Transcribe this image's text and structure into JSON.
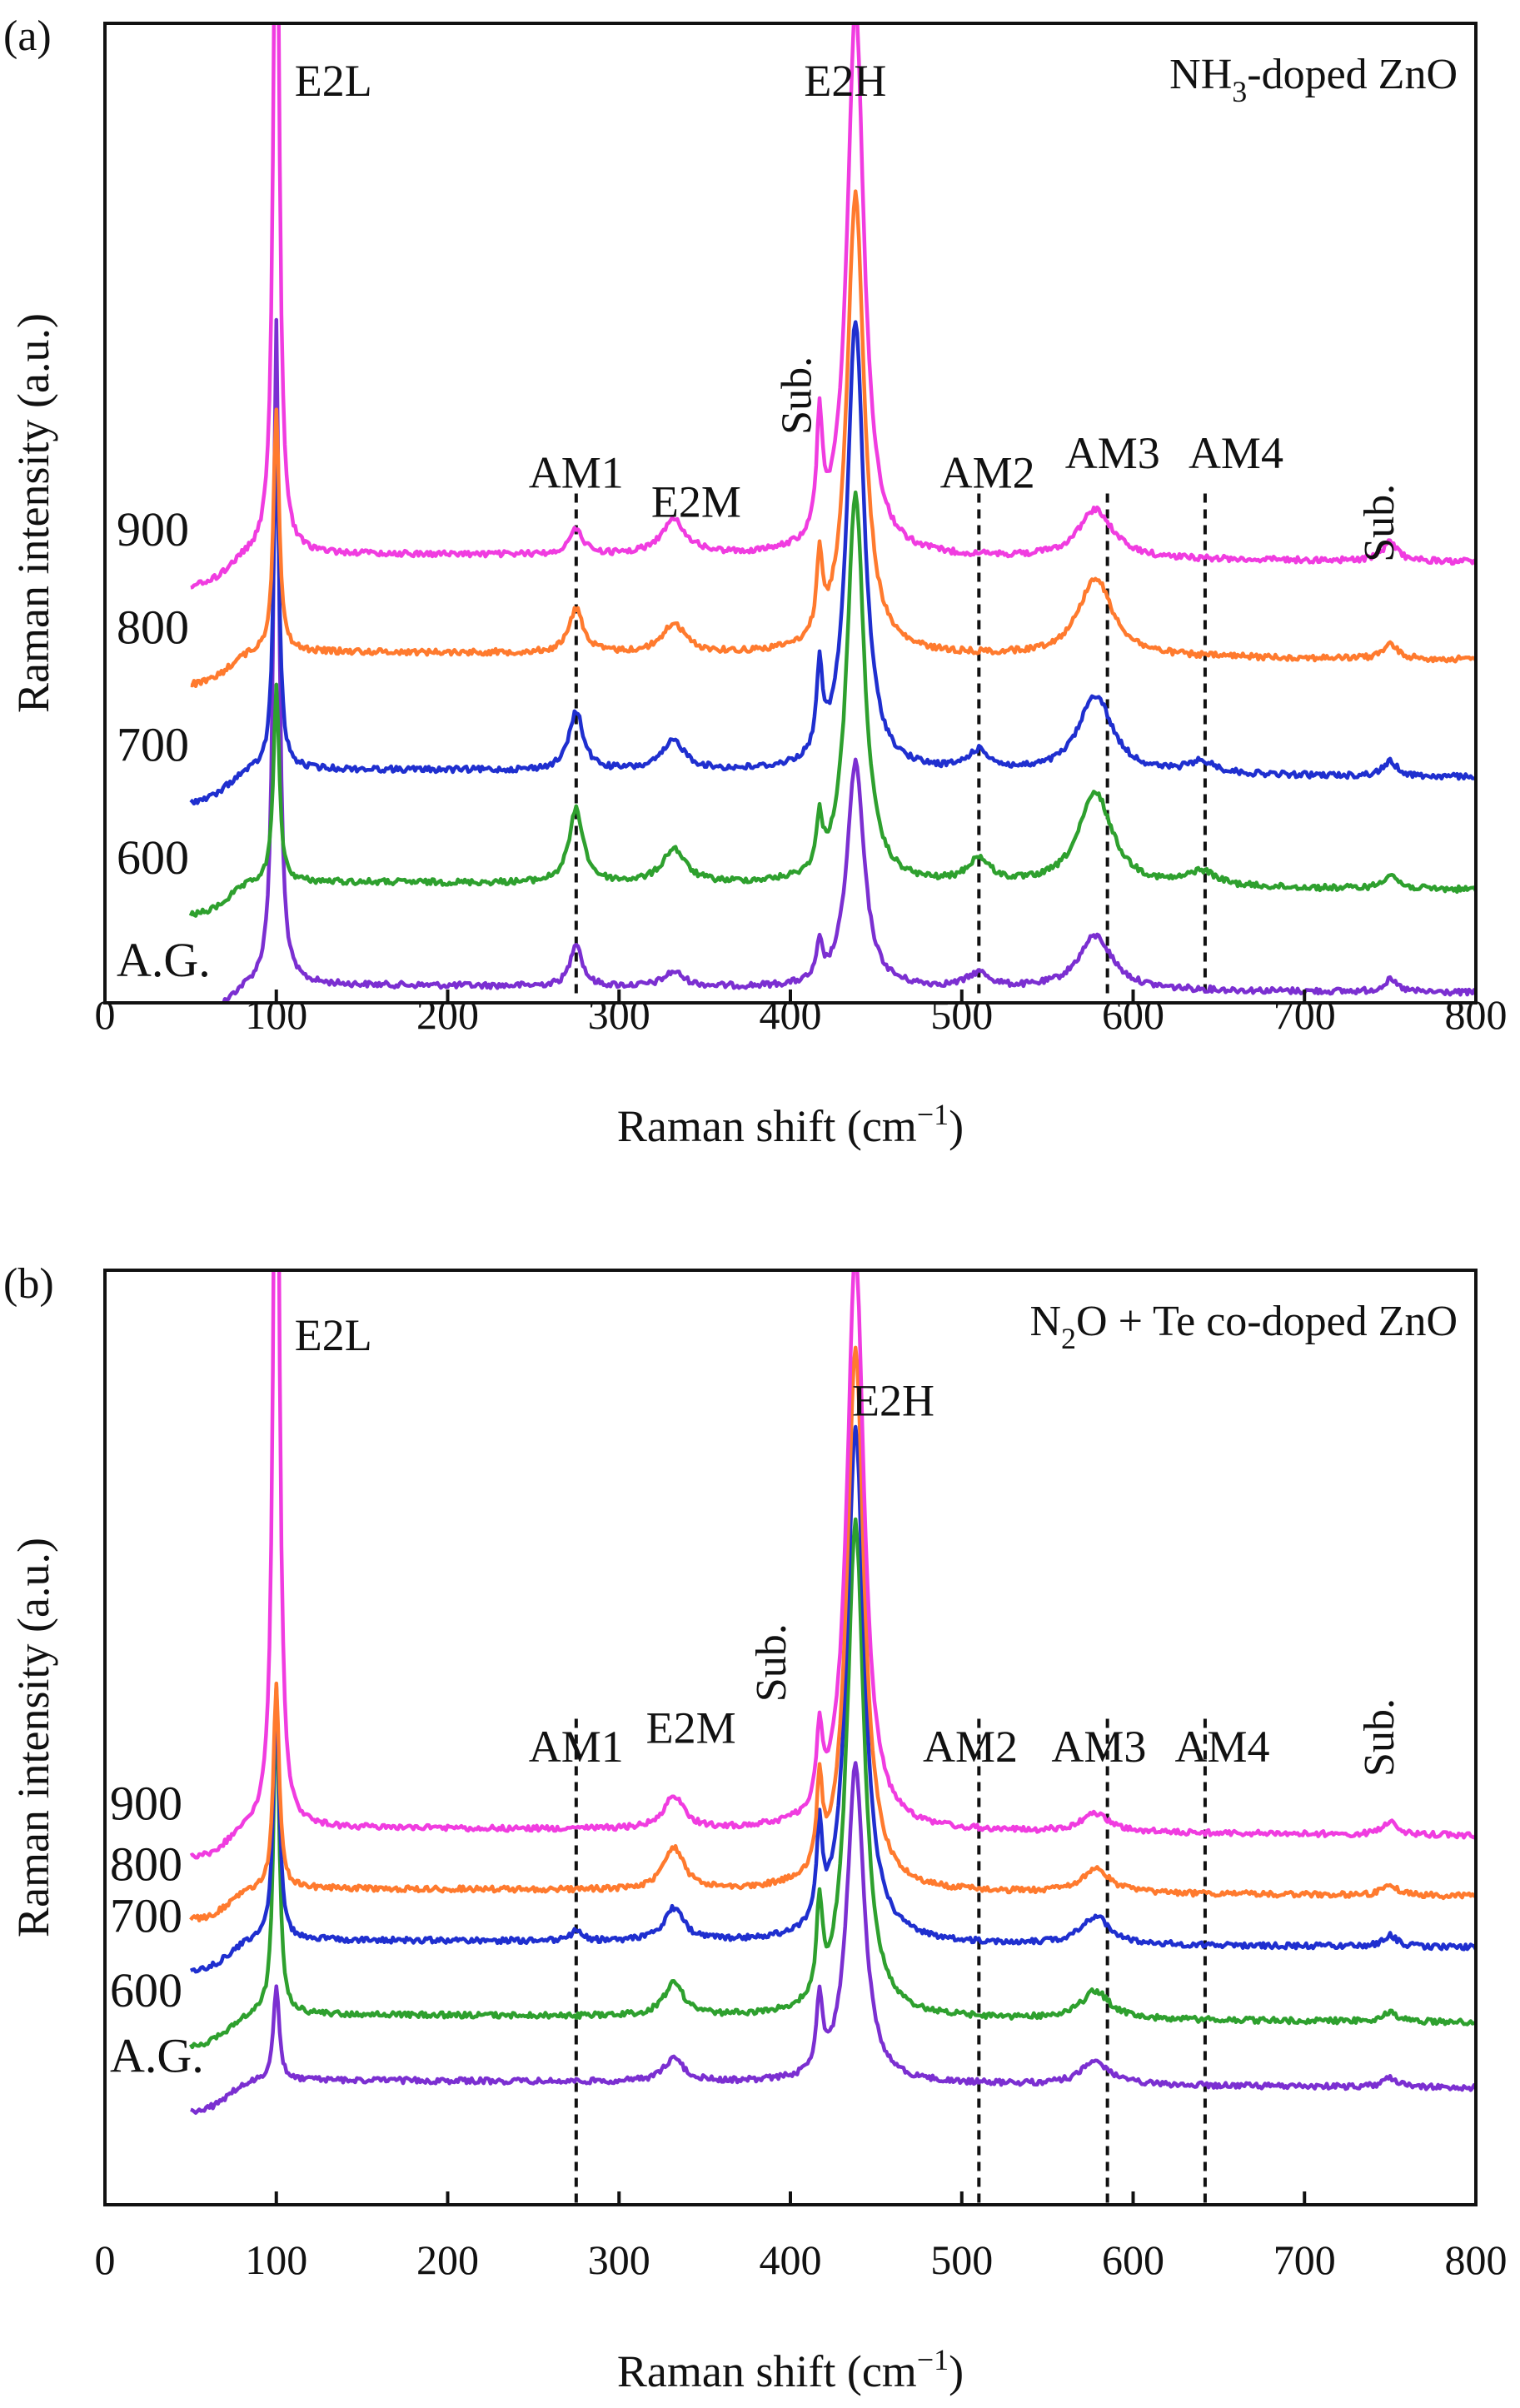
{
  "chart_data": [
    {
      "panel_label": "(a)",
      "type": "line",
      "sample": "NH3-doped ZnO",
      "title_parts": {
        "pre": "NH",
        "sub": "3",
        "post": "-doped ZnO"
      },
      "xlabel": "Raman shift (cm",
      "xlabel_sup": "−1",
      "xlabel_close": ")",
      "ylabel": "Raman intensity (a.u.)",
      "xlim": [
        0,
        800
      ],
      "xticks": [
        "0",
        "100",
        "200",
        "300",
        "400",
        "500",
        "600",
        "700",
        "800"
      ],
      "dashed_lines": [
        275,
        510,
        585,
        642
      ],
      "peak_labels": [
        {
          "text": "E2L",
          "x": 100,
          "level": 0.04
        },
        {
          "text": "E2H",
          "x": 432,
          "level": 0.04
        },
        {
          "text": "AM1",
          "x": 275,
          "level": 0.44
        },
        {
          "text": "E2M",
          "x": 345,
          "level": 0.47
        },
        {
          "text": "AM2",
          "x": 515,
          "level": 0.44
        },
        {
          "text": "AM3",
          "x": 588,
          "level": 0.42
        },
        {
          "text": "AM4",
          "x": 660,
          "level": 0.42
        }
      ],
      "sub_labels": [
        {
          "text": "Sub.",
          "x": 412,
          "level": 0.38
        },
        {
          "text": "Sub.",
          "x": 752,
          "level": 0.51
        }
      ],
      "series": [
        {
          "name": "A.G.",
          "color": "#7b2fd1",
          "baseline": 0.985,
          "peaks": [
            [
              100,
              0.68,
              2
            ],
            [
              275,
              0.045,
              4
            ],
            [
              332,
              0.015,
              7
            ],
            [
              417,
              0.035,
              2
            ],
            [
              438,
              0.23,
              6
            ],
            [
              510,
              0.015,
              8
            ],
            [
              578,
              0.055,
              12
            ],
            [
              750,
              0.012,
              5
            ]
          ]
        },
        {
          "name": "600",
          "color": "#2ea02e",
          "baseline": 0.88,
          "peaks": [
            [
              100,
              0.2,
              2
            ],
            [
              275,
              0.075,
              5
            ],
            [
              332,
              0.035,
              8
            ],
            [
              417,
              0.05,
              2
            ],
            [
              438,
              0.4,
              6
            ],
            [
              510,
              0.025,
              8
            ],
            [
              578,
              0.095,
              12
            ],
            [
              640,
              0.015,
              10
            ],
            [
              750,
              0.015,
              5
            ]
          ]
        },
        {
          "name": "700",
          "color": "#1f2fcf",
          "baseline": 0.765,
          "peaks": [
            [
              100,
              0.33,
              2
            ],
            [
              275,
              0.06,
              5
            ],
            [
              332,
              0.03,
              8
            ],
            [
              417,
              0.09,
              2
            ],
            [
              438,
              0.46,
              6
            ],
            [
              510,
              0.02,
              8
            ],
            [
              578,
              0.08,
              12
            ],
            [
              640,
              0.012,
              10
            ],
            [
              750,
              0.015,
              5
            ]
          ]
        },
        {
          "name": "800",
          "color": "#ff7a2e",
          "baseline": 0.645,
          "peaks": [
            [
              100,
              0.25,
              2
            ],
            [
              275,
              0.045,
              5
            ],
            [
              332,
              0.03,
              8
            ],
            [
              417,
              0.08,
              2
            ],
            [
              438,
              0.47,
              6
            ],
            [
              578,
              0.08,
              12
            ],
            [
              750,
              0.015,
              5
            ]
          ]
        },
        {
          "name": "900",
          "color": "#f03ce0",
          "baseline": 0.545,
          "peaks": [
            [
              100,
              0.8,
              2
            ],
            [
              275,
              0.025,
              5
            ],
            [
              332,
              0.035,
              9
            ],
            [
              417,
              0.12,
              2
            ],
            [
              438,
              0.56,
              6
            ],
            [
              578,
              0.05,
              12
            ],
            [
              750,
              0.02,
              5
            ]
          ]
        }
      ]
    },
    {
      "panel_label": "(b)",
      "type": "line",
      "sample": "N2O + Te co-doped ZnO",
      "title_parts": {
        "pre": "N",
        "sub": "2",
        "post": "O + Te co-doped ZnO"
      },
      "xlabel": "Raman shift (cm",
      "xlabel_sup": "−1",
      "xlabel_close": ")",
      "ylabel": "Raman intensity (a.u.)",
      "xlim": [
        0,
        800
      ],
      "xticks": [
        "0",
        "100",
        "200",
        "300",
        "400",
        "500",
        "600",
        "700",
        "800"
      ],
      "dashed_lines": [
        275,
        510,
        585,
        642
      ],
      "peak_labels": [
        {
          "text": "E2L",
          "x": 100,
          "level": 0.05
        },
        {
          "text": "E2H",
          "x": 460,
          "level": 0.12
        },
        {
          "text": "AM1",
          "x": 275,
          "level": 0.49
        },
        {
          "text": "E2M",
          "x": 342,
          "level": 0.47
        },
        {
          "text": "AM2",
          "x": 505,
          "level": 0.49
        },
        {
          "text": "AM3",
          "x": 580,
          "level": 0.49
        },
        {
          "text": "AM4",
          "x": 652,
          "level": 0.49
        }
      ],
      "sub_labels": [
        {
          "text": "Sub.",
          "x": 397,
          "level": 0.42
        },
        {
          "text": "Sub.",
          "x": 752,
          "level": 0.5
        }
      ],
      "series": [
        {
          "name": "A.G.",
          "color": "#7b2fd1",
          "baseline": 0.87,
          "peaks": [
            [
              100,
              0.1,
              2
            ],
            [
              332,
              0.025,
              7
            ],
            [
              417,
              0.08,
              2
            ],
            [
              438,
              0.34,
              6
            ],
            [
              578,
              0.025,
              10
            ],
            [
              750,
              0.01,
              5
            ]
          ]
        },
        {
          "name": "600",
          "color": "#2ea02e",
          "baseline": 0.8,
          "peaks": [
            [
              100,
              0.34,
              2
            ],
            [
              332,
              0.035,
              7
            ],
            [
              417,
              0.1,
              2
            ],
            [
              438,
              0.53,
              6
            ],
            [
              578,
              0.03,
              10
            ],
            [
              750,
              0.01,
              5
            ]
          ]
        },
        {
          "name": "700",
          "color": "#1f2fcf",
          "baseline": 0.72,
          "peaks": [
            [
              100,
              0.27,
              2
            ],
            [
              275,
              0.01,
              4
            ],
            [
              332,
              0.035,
              7
            ],
            [
              417,
              0.1,
              2
            ],
            [
              438,
              0.55,
              6
            ],
            [
              578,
              0.03,
              10
            ],
            [
              750,
              0.012,
              5
            ]
          ]
        },
        {
          "name": "800",
          "color": "#ff7a2e",
          "baseline": 0.665,
          "peaks": [
            [
              100,
              0.22,
              2
            ],
            [
              332,
              0.045,
              7
            ],
            [
              417,
              0.09,
              2
            ],
            [
              438,
              0.58,
              6
            ],
            [
              578,
              0.025,
              10
            ],
            [
              750,
              0.012,
              5
            ]
          ]
        },
        {
          "name": "900",
          "color": "#f03ce0",
          "baseline": 0.6,
          "peaks": [
            [
              100,
              0.98,
              2
            ],
            [
              332,
              0.035,
              7
            ],
            [
              417,
              0.08,
              2
            ],
            [
              438,
              0.62,
              6
            ],
            [
              578,
              0.02,
              10
            ],
            [
              750,
              0.015,
              5
            ]
          ]
        }
      ]
    }
  ]
}
